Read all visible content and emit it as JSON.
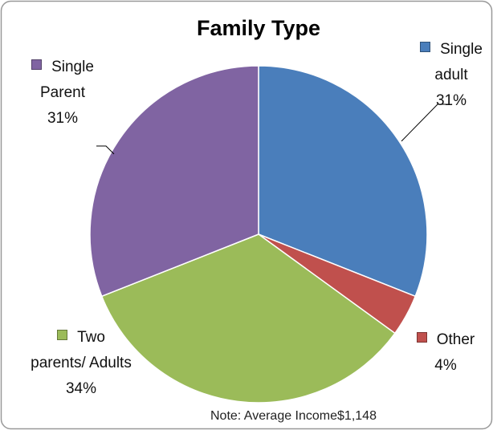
{
  "chart_data": {
    "type": "pie",
    "title": "Family Type",
    "categories": [
      "Single adult",
      "Other",
      "Two parents/ Adults",
      "Single Parent"
    ],
    "values": [
      31,
      4,
      34,
      31
    ],
    "value_labels": [
      "31%",
      "4%",
      "34%",
      "31%"
    ],
    "colors": [
      "#4a7ebb",
      "#c0504d",
      "#9bbb59",
      "#8064a2"
    ],
    "note": "Note: Average Income$1,148"
  }
}
